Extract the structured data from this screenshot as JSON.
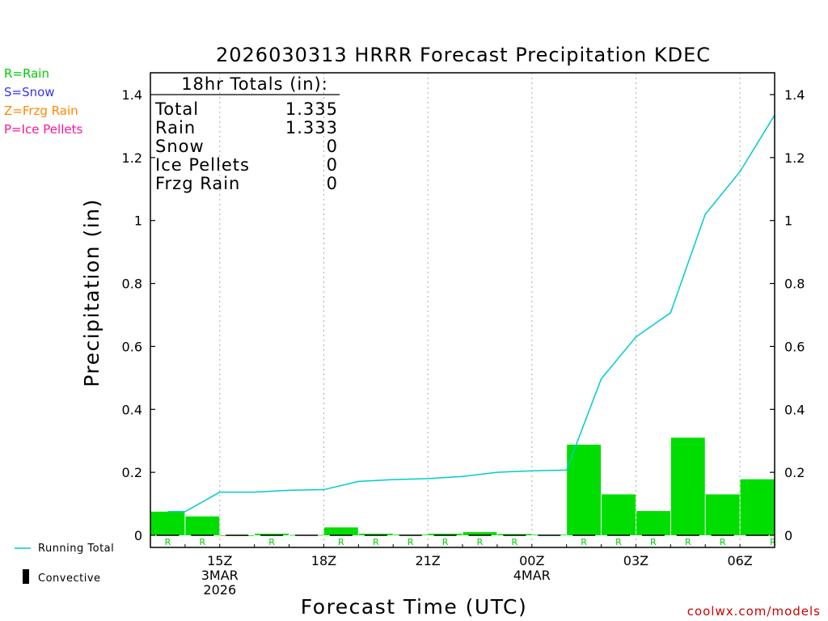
{
  "title": "2026030313 HRRR Forecast Precipitation KDEC",
  "xlabel": "Forecast Time (UTC)",
  "ylabel": "Precipitation (in)",
  "credit": "coolwx.com/models",
  "ptype_legend": [
    {
      "text": "R=Rain",
      "color": "#00cc00"
    },
    {
      "text": "S=Snow",
      "color": "#3333ff"
    },
    {
      "text": "Z=Frzg Rain",
      "color": "#ff8800"
    },
    {
      "text": "P=Ice Pellets",
      "color": "#ff1493"
    }
  ],
  "series_legend": {
    "running_total": "Running Total",
    "convective": "Convective"
  },
  "totals": {
    "header": "18hr Totals (in):",
    "rows": [
      {
        "label": "Total",
        "value": "1.335"
      },
      {
        "label": "Rain",
        "value": "1.333"
      },
      {
        "label": "Snow",
        "value": "0"
      },
      {
        "label": "Ice Pellets",
        "value": "0"
      },
      {
        "label": "Frzg Rain",
        "value": "0"
      }
    ]
  },
  "chart_data": {
    "type": "bar",
    "title": "2026030313 HRRR Forecast Precipitation KDEC",
    "xlabel": "Forecast Time (UTC)",
    "ylabel": "Precipitation (in)",
    "ylim": [
      0,
      1.4
    ],
    "y_ticks": [
      "0",
      "0.2",
      "0.4",
      "0.6",
      "0.8",
      "1",
      "1.2",
      "1.4"
    ],
    "x_ticks": [
      {
        "hour": 2,
        "lines": [
          "15Z",
          "3MAR",
          "2026"
        ]
      },
      {
        "hour": 5,
        "lines": [
          "18Z"
        ]
      },
      {
        "hour": 8,
        "lines": [
          "21Z"
        ]
      },
      {
        "hour": 11,
        "lines": [
          "00Z",
          "4MAR"
        ]
      },
      {
        "hour": 14,
        "lines": [
          "03Z"
        ]
      },
      {
        "hour": 17,
        "lines": [
          "06Z"
        ]
      }
    ],
    "grid": "vertical dotted at labeled hours",
    "bar_color": "#00dd00",
    "line_color": "#00cccc",
    "hourly_precip": {
      "hours": [
        1,
        2,
        3,
        4,
        5,
        6,
        7,
        8,
        9,
        10,
        11,
        12,
        13,
        14,
        15,
        16,
        17,
        18
      ],
      "values": [
        0.075,
        0.06,
        0.0,
        0.005,
        0.001,
        0.025,
        0.005,
        0.002,
        0.005,
        0.01,
        0.004,
        0.002,
        0.288,
        0.13,
        0.077,
        0.31,
        0.13,
        0.178
      ],
      "ptype": [
        "R",
        "R",
        "",
        "R",
        "",
        "R",
        "R",
        "R",
        "R",
        "R",
        "R",
        "",
        "R",
        "R",
        "R",
        "R",
        "R",
        "R"
      ]
    },
    "running_total": {
      "name": "Running Total",
      "hours": [
        1,
        2,
        3,
        4,
        5,
        6,
        7,
        8,
        9,
        10,
        11,
        12,
        13,
        14,
        15,
        16,
        17,
        18
      ],
      "values": [
        0.075,
        0.137,
        0.137,
        0.143,
        0.145,
        0.171,
        0.177,
        0.18,
        0.187,
        0.2,
        0.205,
        0.207,
        0.497,
        0.63,
        0.707,
        1.02,
        1.155,
        1.335
      ]
    }
  }
}
